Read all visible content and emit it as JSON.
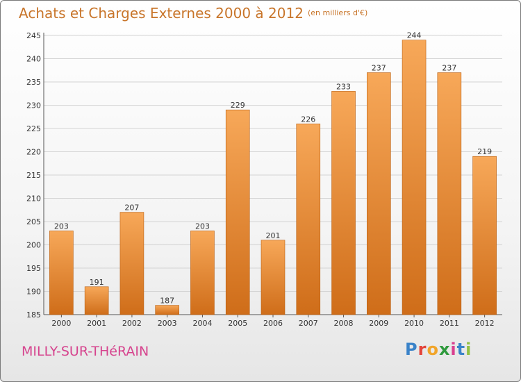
{
  "title": "Achats et Charges Externes 2000 à 2012",
  "unit_label": "(en milliers d'€)",
  "town": "MILLY-SUR-THéRAIN",
  "logo": {
    "letters": [
      "P",
      "r",
      "o",
      "x",
      "i",
      "t",
      "i"
    ],
    "colors": [
      "#3a83c9",
      "#e3433a",
      "#f1a52a",
      "#2f9a3d",
      "#d93f8f",
      "#3a83c9",
      "#92c142"
    ]
  },
  "colors": {
    "bar_top": "#f7a859",
    "bar_bottom": "#cf6d19",
    "title": "#c8752a",
    "town": "#d6448e"
  },
  "chart_data": {
    "type": "bar",
    "categories": [
      "2000",
      "2001",
      "2002",
      "2003",
      "2004",
      "2005",
      "2006",
      "2007",
      "2008",
      "2009",
      "2010",
      "2011",
      "2012"
    ],
    "values": [
      203,
      191,
      207,
      187,
      203,
      229,
      201,
      226,
      233,
      237,
      244,
      237,
      219
    ],
    "ylim": [
      185,
      245
    ],
    "yticks": [
      185,
      190,
      195,
      200,
      205,
      210,
      215,
      220,
      225,
      230,
      235,
      240,
      245
    ],
    "grid": true,
    "xlabel": "",
    "ylabel": ""
  }
}
